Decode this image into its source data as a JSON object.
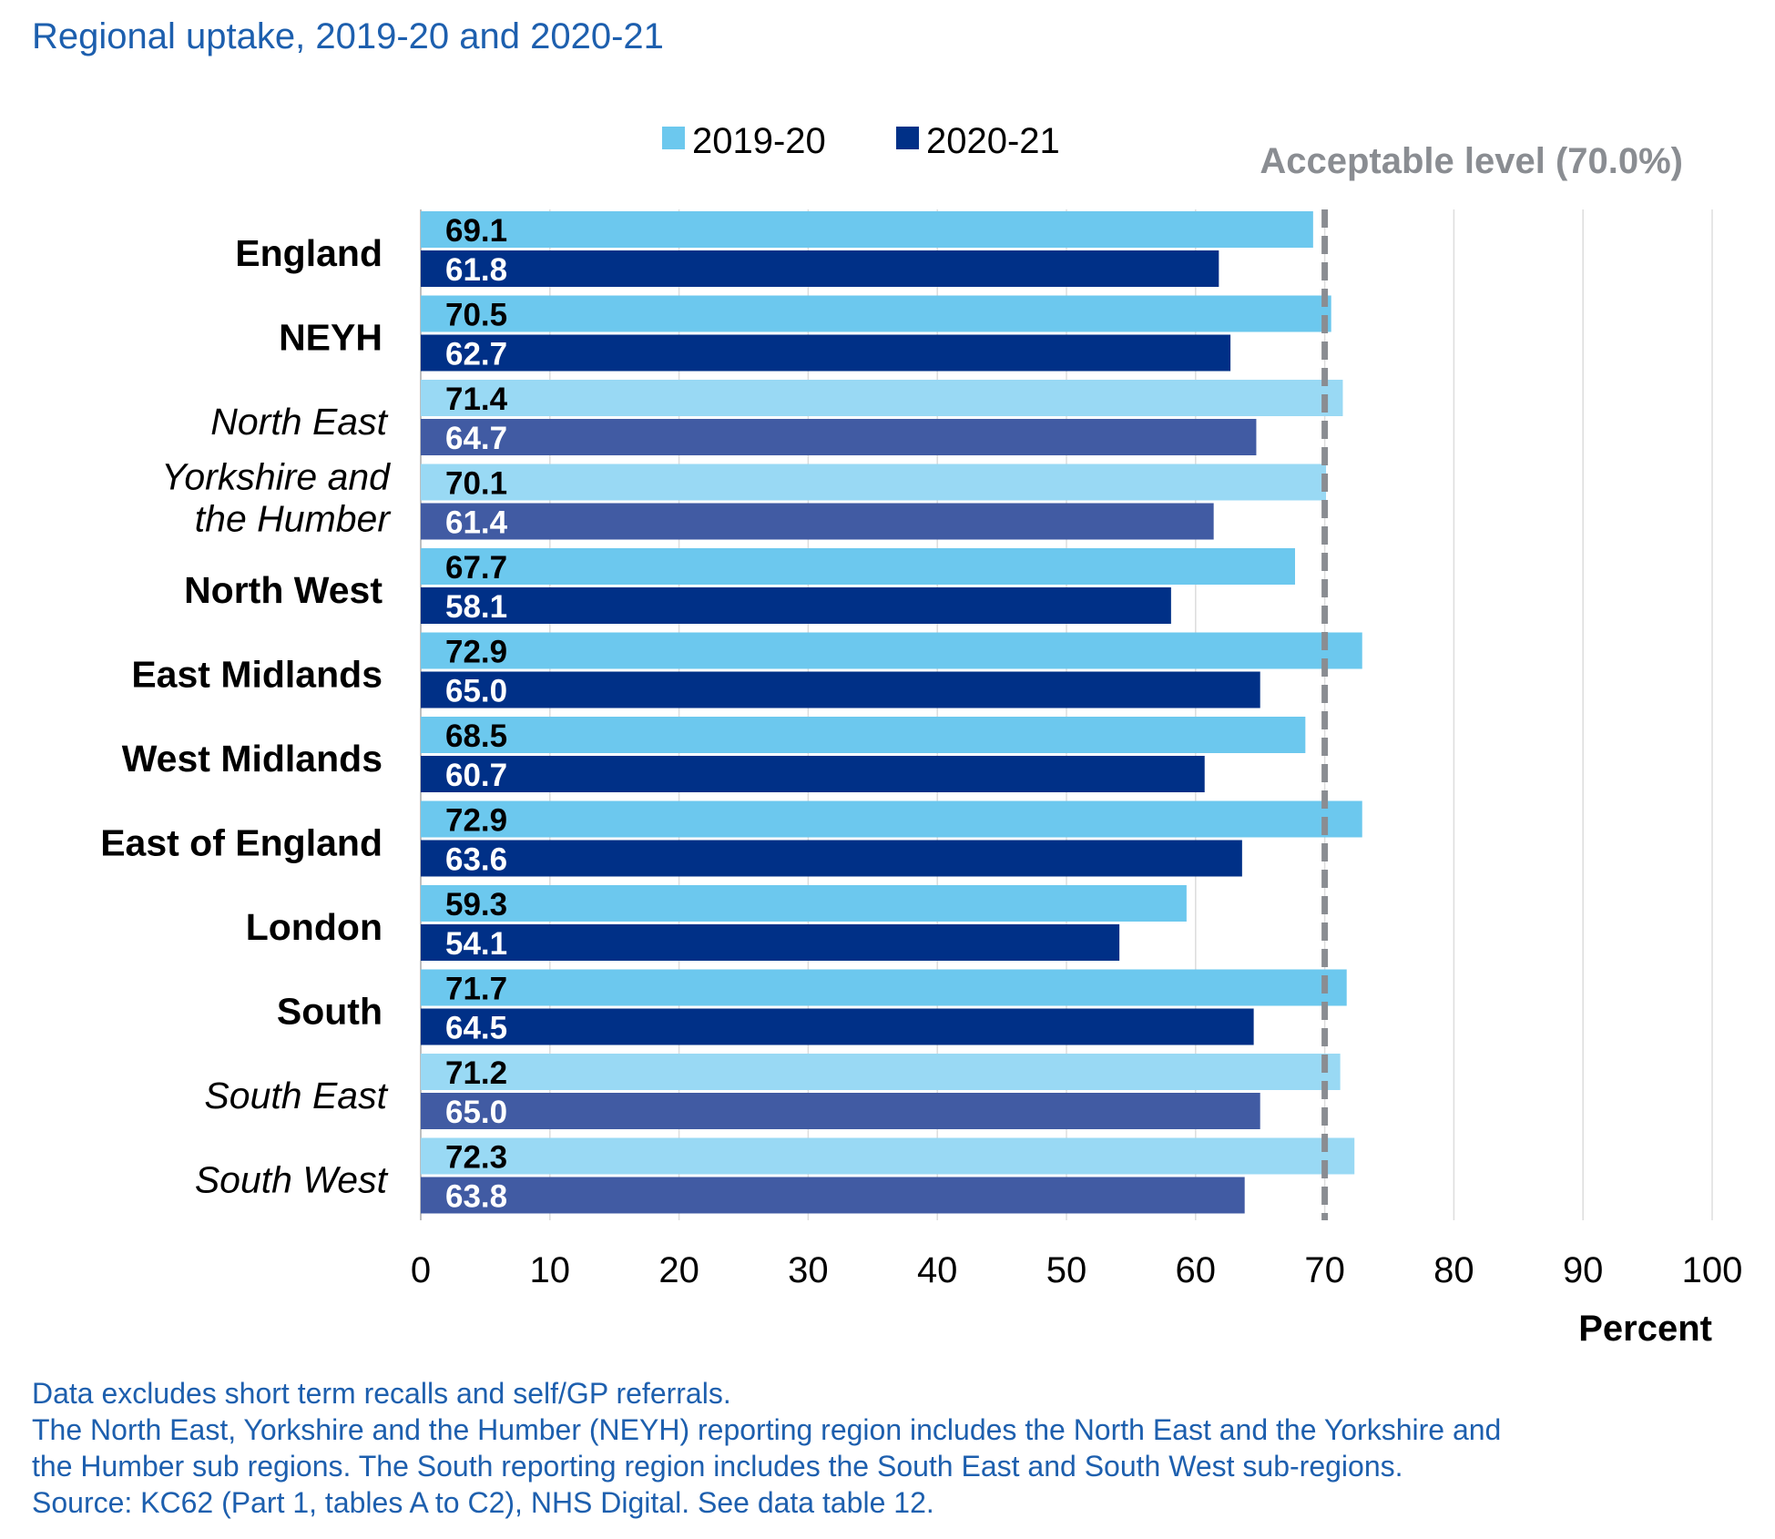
{
  "chart_data": {
    "type": "bar",
    "orientation": "horizontal",
    "title": "Regional uptake, 2019-20 and 2020-21",
    "xlabel": "Percent",
    "ylabel": "",
    "xlim": [
      0,
      100
    ],
    "x_ticks": [
      "0",
      "10",
      "20",
      "30",
      "40",
      "50",
      "60",
      "70",
      "80",
      "90",
      "100"
    ],
    "grid": "vertical",
    "legend_position": "top",
    "categories": [
      "England",
      "NEYH",
      "North East",
      "Yorkshire and the Humber",
      "North West",
      "East Midlands",
      "West Midlands",
      "East of England",
      "London",
      "South",
      "South East",
      "South West"
    ],
    "category_lines": [
      [
        "England"
      ],
      [
        "NEYH"
      ],
      [
        "North East"
      ],
      [
        "Yorkshire and",
        "the Humber"
      ],
      [
        "North West"
      ],
      [
        "East Midlands"
      ],
      [
        "West Midlands"
      ],
      [
        "East of England"
      ],
      [
        "London"
      ],
      [
        "South"
      ],
      [
        "South East"
      ],
      [
        "South West"
      ]
    ],
    "sub_regions": [
      "North East",
      "Yorkshire and the Humber",
      "South East",
      "South West"
    ],
    "series": [
      {
        "name": "2019-20",
        "color": "#6cc8ee",
        "sub_region_color": "#99d9f4",
        "values": [
          69.1,
          70.5,
          71.4,
          70.1,
          67.7,
          72.9,
          68.5,
          72.9,
          59.3,
          71.7,
          71.2,
          72.3
        ],
        "labels": [
          "69.1",
          "70.5",
          "71.4",
          "70.1",
          "67.7",
          "72.9",
          "68.5",
          "72.9",
          "59.3",
          "71.7",
          "71.2",
          "72.3"
        ]
      },
      {
        "name": "2020-21",
        "color": "#003087",
        "sub_region_color": "#415ba3",
        "values": [
          61.8,
          62.7,
          64.7,
          61.4,
          58.1,
          65.0,
          60.7,
          63.6,
          54.1,
          64.5,
          65.0,
          63.8
        ],
        "labels": [
          "61.8",
          "62.7",
          "64.7",
          "61.4",
          "58.1",
          "65.0",
          "60.7",
          "63.6",
          "54.1",
          "64.5",
          "65.0",
          "63.8"
        ]
      }
    ],
    "reference_line": {
      "value": 70.0,
      "label": "Acceptable level (70.0%)",
      "color": "#8a8d92"
    }
  },
  "footnotes": [
    "Data excludes short term recalls and self/GP referrals.",
    "The North East, Yorkshire and the Humber (NEYH) reporting region includes the North East and the Yorkshire and",
    "the Humber sub regions. The South reporting region includes the South East and South West sub-regions.",
    "Source: KC62 (Part 1, tables A to C2), NHS Digital. See data table 12."
  ]
}
